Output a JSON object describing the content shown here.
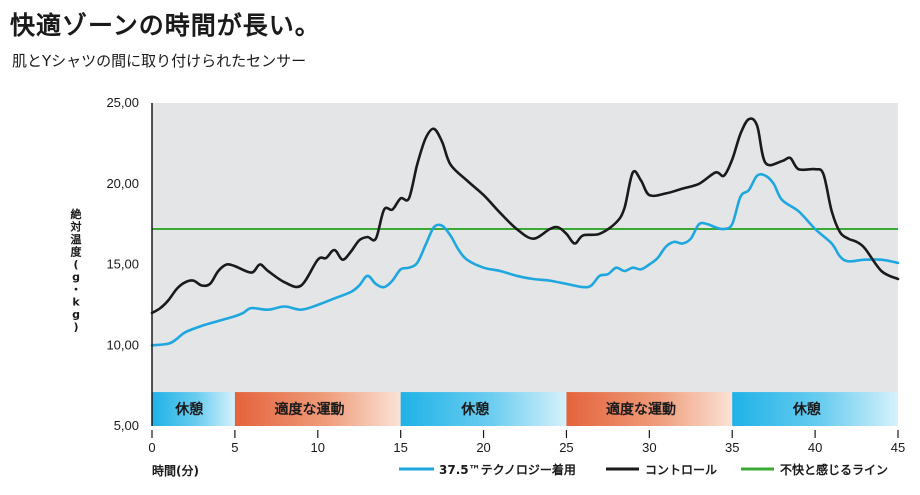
{
  "header": {
    "title": "快適ゾーンの時間が長い。",
    "subtitle": "肌とYシャツの間に取り付けられたセンサー"
  },
  "chart_data": {
    "type": "line",
    "ylabel": "絶対温度(g・kg)",
    "xlabel": "時間(分)",
    "xlim": [
      0,
      45
    ],
    "ylim": [
      5,
      25
    ],
    "x_ticks": [
      "0",
      "5",
      "10",
      "15",
      "20",
      "25",
      "30",
      "35",
      "40",
      "45"
    ],
    "y_ticks": [
      "5,00",
      "10,00",
      "15,00",
      "20,00",
      "25,00"
    ],
    "threshold": {
      "name": "不快と感じるライン",
      "value": 17.2,
      "color": "#3aaa35"
    },
    "phases": [
      {
        "label": "休憩",
        "start": 0,
        "end": 5,
        "kind": "rest"
      },
      {
        "label": "適度な運動",
        "start": 5,
        "end": 15,
        "kind": "exercise"
      },
      {
        "label": "休憩",
        "start": 15,
        "end": 25,
        "kind": "rest"
      },
      {
        "label": "適度な運動",
        "start": 25,
        "end": 35,
        "kind": "exercise"
      },
      {
        "label": "休憩",
        "start": 35,
        "end": 45,
        "kind": "rest"
      }
    ],
    "series": [
      {
        "name": "37.5™テクノロジー着用",
        "color": "#1ea7df",
        "points": [
          [
            0,
            10.0
          ],
          [
            1,
            10.1
          ],
          [
            1.5,
            10.4
          ],
          [
            2,
            10.8
          ],
          [
            3,
            11.2
          ],
          [
            4,
            11.5
          ],
          [
            5,
            11.8
          ],
          [
            5.5,
            12.0
          ],
          [
            6,
            12.3
          ],
          [
            7,
            12.2
          ],
          [
            8,
            12.4
          ],
          [
            9,
            12.2
          ],
          [
            10,
            12.5
          ],
          [
            11,
            12.9
          ],
          [
            12,
            13.3
          ],
          [
            12.5,
            13.7
          ],
          [
            13,
            14.3
          ],
          [
            13.5,
            13.8
          ],
          [
            14,
            13.6
          ],
          [
            14.5,
            14.0
          ],
          [
            15,
            14.7
          ],
          [
            15.5,
            14.8
          ],
          [
            16,
            15.1
          ],
          [
            16.5,
            16.2
          ],
          [
            17,
            17.3
          ],
          [
            17.5,
            17.4
          ],
          [
            18,
            16.8
          ],
          [
            18.5,
            15.9
          ],
          [
            19,
            15.3
          ],
          [
            20,
            14.8
          ],
          [
            21,
            14.6
          ],
          [
            22,
            14.3
          ],
          [
            23,
            14.1
          ],
          [
            24,
            14.0
          ],
          [
            25,
            13.8
          ],
          [
            26,
            13.6
          ],
          [
            26.5,
            13.7
          ],
          [
            27,
            14.3
          ],
          [
            27.5,
            14.4
          ],
          [
            28,
            14.8
          ],
          [
            28.5,
            14.6
          ],
          [
            29,
            14.8
          ],
          [
            29.5,
            14.7
          ],
          [
            30,
            15.0
          ],
          [
            30.5,
            15.4
          ],
          [
            31,
            16.1
          ],
          [
            31.5,
            16.4
          ],
          [
            32,
            16.3
          ],
          [
            32.5,
            16.6
          ],
          [
            33,
            17.5
          ],
          [
            33.5,
            17.5
          ],
          [
            34,
            17.3
          ],
          [
            34.5,
            17.2
          ],
          [
            35,
            17.5
          ],
          [
            35.5,
            19.2
          ],
          [
            36,
            19.6
          ],
          [
            36.5,
            20.5
          ],
          [
            37,
            20.5
          ],
          [
            37.5,
            20.0
          ],
          [
            38,
            19.0
          ],
          [
            39,
            18.3
          ],
          [
            40,
            17.2
          ],
          [
            41,
            16.3
          ],
          [
            41.5,
            15.5
          ],
          [
            42,
            15.2
          ],
          [
            43,
            15.3
          ],
          [
            44,
            15.3
          ],
          [
            45,
            15.1
          ]
        ]
      },
      {
        "name": "コントロール",
        "color": "#1a1a1a",
        "points": [
          [
            0,
            12.0
          ],
          [
            0.5,
            12.3
          ],
          [
            1,
            12.8
          ],
          [
            1.5,
            13.5
          ],
          [
            2,
            13.9
          ],
          [
            2.5,
            14.0
          ],
          [
            3,
            13.7
          ],
          [
            3.5,
            13.8
          ],
          [
            4,
            14.6
          ],
          [
            4.5,
            15.0
          ],
          [
            5,
            14.9
          ],
          [
            6,
            14.5
          ],
          [
            6.5,
            15.0
          ],
          [
            7,
            14.6
          ],
          [
            8,
            13.9
          ],
          [
            9,
            13.7
          ],
          [
            10,
            15.3
          ],
          [
            10.5,
            15.4
          ],
          [
            11,
            15.9
          ],
          [
            11.5,
            15.3
          ],
          [
            12,
            15.8
          ],
          [
            12.5,
            16.5
          ],
          [
            13,
            16.7
          ],
          [
            13.5,
            16.6
          ],
          [
            14,
            18.4
          ],
          [
            14.5,
            18.4
          ],
          [
            15,
            19.1
          ],
          [
            15.5,
            19.1
          ],
          [
            16,
            21.2
          ],
          [
            16.5,
            22.8
          ],
          [
            17,
            23.4
          ],
          [
            17.5,
            22.6
          ],
          [
            18,
            21.2
          ],
          [
            19,
            20.2
          ],
          [
            20,
            19.3
          ],
          [
            21,
            18.2
          ],
          [
            22,
            17.2
          ],
          [
            23,
            16.6
          ],
          [
            24,
            17.2
          ],
          [
            24.5,
            17.3
          ],
          [
            25,
            16.9
          ],
          [
            25.5,
            16.3
          ],
          [
            26,
            16.8
          ],
          [
            27,
            16.9
          ],
          [
            28,
            17.6
          ],
          [
            28.5,
            18.5
          ],
          [
            29,
            20.7
          ],
          [
            29.5,
            20.2
          ],
          [
            30,
            19.3
          ],
          [
            31,
            19.4
          ],
          [
            32,
            19.7
          ],
          [
            33,
            20.0
          ],
          [
            34,
            20.7
          ],
          [
            34.5,
            20.5
          ],
          [
            35,
            21.5
          ],
          [
            35.5,
            23.1
          ],
          [
            36,
            24.0
          ],
          [
            36.5,
            23.6
          ],
          [
            37,
            21.3
          ],
          [
            38,
            21.4
          ],
          [
            38.5,
            21.6
          ],
          [
            39,
            20.9
          ],
          [
            40,
            20.9
          ],
          [
            40.5,
            20.6
          ],
          [
            41,
            18.3
          ],
          [
            41.5,
            17.0
          ],
          [
            42,
            16.6
          ],
          [
            42.5,
            16.4
          ],
          [
            43,
            16.0
          ],
          [
            44,
            14.6
          ],
          [
            45,
            14.1
          ]
        ]
      }
    ],
    "legend": {
      "placement": "bottom-right",
      "items": [
        "37.5™テクノロジー着用",
        "コントロール",
        "不快と感じるライン"
      ]
    },
    "colors": {
      "plot_bg": "#e4e5e7",
      "rest_band": "#2bb6e6",
      "exercise_band": "#e56b44"
    }
  }
}
